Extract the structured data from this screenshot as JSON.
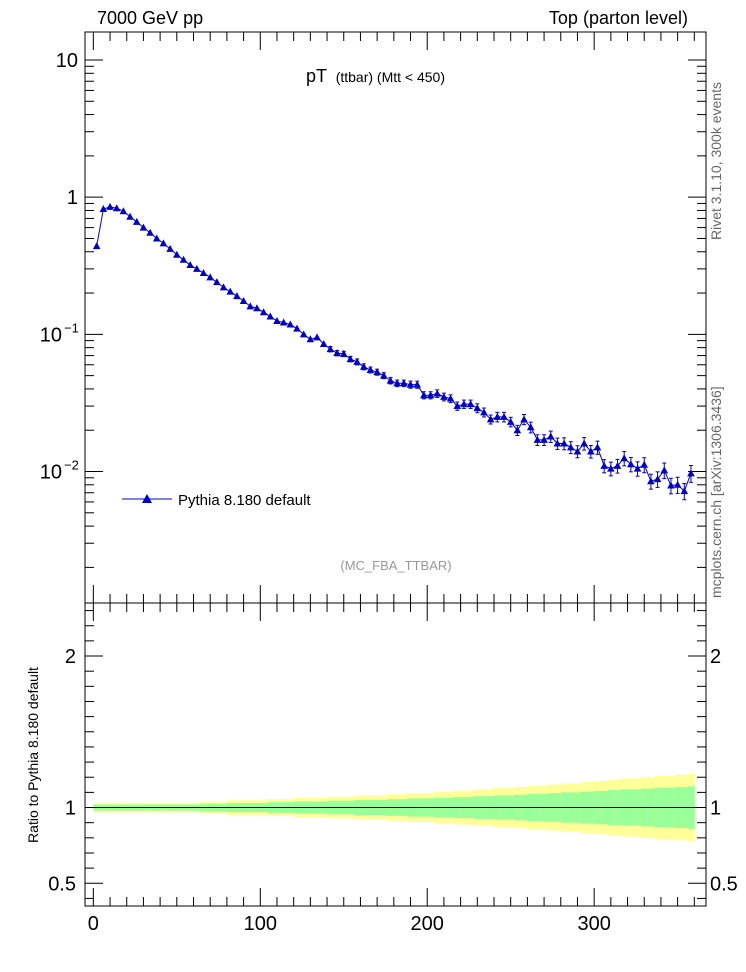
{
  "header": {
    "left": "7000 GeV pp",
    "right": "Top (parton level)"
  },
  "side_labels": {
    "rivet": "Rivet 3.1.10,  300k events",
    "mcplots": "mcplots.cern.ch [arXiv:1306.3436]"
  },
  "colors": {
    "series": "#0000cc",
    "band_outer": "#ffff99",
    "band_inner": "#99ff99",
    "analysis_label": "#999999"
  },
  "chart_data": [
    {
      "type": "line",
      "title_main": "pT",
      "title_sub": "(ttbar) (Mtt < 450)",
      "analysis_label": "(MC_FBA_TTBAR)",
      "yscale": "log",
      "xlim": [
        -5,
        367
      ],
      "ylim": [
        0.0011,
        16
      ],
      "y_ticks": [
        {
          "value": 10,
          "label": "10"
        },
        {
          "value": 1,
          "label": "1"
        },
        {
          "value": 0.1,
          "label": "10",
          "exp": "−1"
        },
        {
          "value": 0.01,
          "label": "10",
          "exp": "−2"
        }
      ],
      "legend": {
        "entry": "Pythia 8.180 default",
        "placement": "bottom-left"
      },
      "series": [
        {
          "name": "Pythia 8.180 default",
          "bin_width": 4,
          "x": [
            2,
            6,
            10,
            14,
            18,
            22,
            26,
            30,
            34,
            38,
            42,
            46,
            50,
            54,
            58,
            62,
            66,
            70,
            74,
            78,
            82,
            86,
            90,
            94,
            98,
            102,
            106,
            110,
            114,
            118,
            122,
            126,
            130,
            134,
            138,
            142,
            146,
            150,
            154,
            158,
            162,
            166,
            170,
            174,
            178,
            182,
            186,
            190,
            194,
            198,
            202,
            206,
            210,
            214,
            218,
            222,
            226,
            230,
            234,
            238,
            242,
            246,
            250,
            254,
            258,
            262,
            266,
            270,
            274,
            278,
            282,
            286,
            290,
            294,
            298,
            302,
            306,
            310,
            314,
            318,
            322,
            326,
            330,
            334,
            338,
            342,
            346,
            350,
            354,
            358
          ],
          "y": [
            0.44,
            0.82,
            0.85,
            0.83,
            0.79,
            0.72,
            0.66,
            0.6,
            0.55,
            0.5,
            0.46,
            0.42,
            0.38,
            0.35,
            0.32,
            0.3,
            0.28,
            0.26,
            0.24,
            0.22,
            0.205,
            0.19,
            0.175,
            0.16,
            0.155,
            0.145,
            0.135,
            0.125,
            0.122,
            0.118,
            0.11,
            0.1,
            0.092,
            0.095,
            0.085,
            0.078,
            0.073,
            0.072,
            0.066,
            0.063,
            0.058,
            0.055,
            0.053,
            0.05,
            0.046,
            0.044,
            0.044,
            0.043,
            0.043,
            0.036,
            0.036,
            0.037,
            0.035,
            0.034,
            0.03,
            0.031,
            0.031,
            0.029,
            0.027,
            0.024,
            0.025,
            0.025,
            0.023,
            0.02,
            0.024,
            0.021,
            0.017,
            0.017,
            0.018,
            0.016,
            0.016,
            0.015,
            0.014,
            0.016,
            0.014,
            0.015,
            0.011,
            0.0105,
            0.011,
            0.0125,
            0.0113,
            0.0105,
            0.0112,
            0.0085,
            0.0088,
            0.0102,
            0.0079,
            0.008,
            0.0072,
            0.0097
          ],
          "rel_err": [
            0.02,
            0.02,
            0.02,
            0.02,
            0.02,
            0.02,
            0.02,
            0.02,
            0.02,
            0.02,
            0.02,
            0.02,
            0.02,
            0.02,
            0.02,
            0.02,
            0.025,
            0.025,
            0.025,
            0.025,
            0.03,
            0.03,
            0.03,
            0.03,
            0.03,
            0.03,
            0.035,
            0.035,
            0.035,
            0.035,
            0.04,
            0.04,
            0.04,
            0.04,
            0.04,
            0.045,
            0.045,
            0.045,
            0.045,
            0.05,
            0.05,
            0.05,
            0.05,
            0.05,
            0.055,
            0.055,
            0.055,
            0.06,
            0.06,
            0.06,
            0.06,
            0.065,
            0.065,
            0.065,
            0.07,
            0.07,
            0.07,
            0.075,
            0.075,
            0.075,
            0.08,
            0.08,
            0.08,
            0.085,
            0.085,
            0.09,
            0.09,
            0.09,
            0.095,
            0.095,
            0.1,
            0.1,
            0.1,
            0.105,
            0.105,
            0.11,
            0.11,
            0.115,
            0.115,
            0.12,
            0.12,
            0.12,
            0.125,
            0.125,
            0.13,
            0.13,
            0.13,
            0.135,
            0.135,
            0.14
          ]
        }
      ]
    },
    {
      "type": "area",
      "ylabel": "Ratio to Pythia 8.180 default",
      "xlim": [
        -5,
        367
      ],
      "ylim": [
        0.35,
        2.35
      ],
      "y_ticks": [
        {
          "value": 2,
          "label": "2"
        },
        {
          "value": 1,
          "label": "1"
        },
        {
          "value": 0.5,
          "label": "0.5"
        }
      ],
      "x_ticks": [
        {
          "value": 0,
          "label": "0"
        },
        {
          "value": 100,
          "label": "100"
        },
        {
          "value": 200,
          "label": "200"
        },
        {
          "value": 300,
          "label": "300"
        }
      ],
      "reference_line": 1
    }
  ]
}
